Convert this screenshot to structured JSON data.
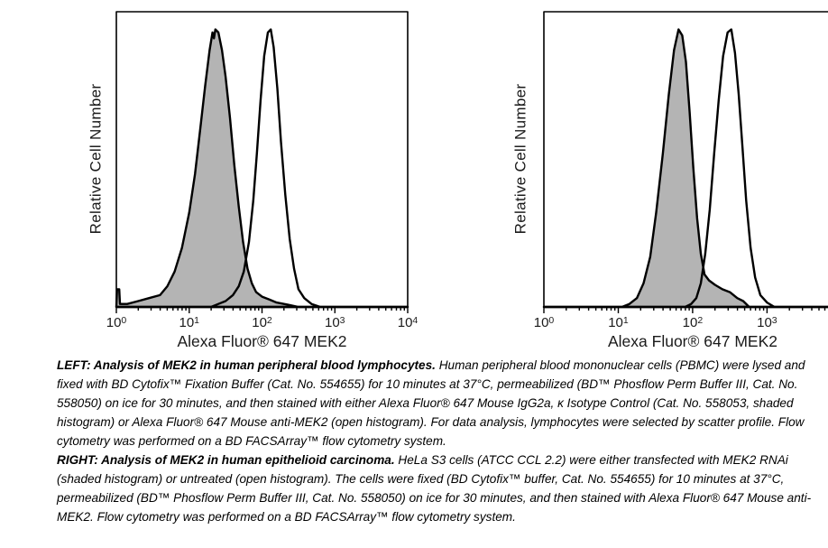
{
  "figure": {
    "background": "#ffffff",
    "text_color": "#1a1a1a",
    "histogram_outline_color": "#000000",
    "shaded_fill_color": "#b4b4b4"
  },
  "chart_data": [
    {
      "type": "area",
      "panel": "left",
      "title": "",
      "xlabel": "Alexa Fluor® 647 MEK2",
      "ylabel": "Relative Cell Number",
      "x_scale": "log10",
      "tick_base": "10",
      "x_range_exponents": [
        0,
        4
      ],
      "x_tick_exponents": [
        0,
        1,
        2,
        3,
        4
      ],
      "y_axis_ticks": "none (relative count)",
      "grid": false,
      "legend": "none (described in caption)",
      "series": [
        {
          "name": "Alexa Fluor® 647 Mouse IgG2a, κ Isotype Control (Cat. No. 558053) — shaded histogram",
          "style": "shaded",
          "fill": "#b4b4b4",
          "approx_peak_x": 22,
          "points": [
            [
              0.0,
              0.0
            ],
            [
              0.01,
              0.06
            ],
            [
              0.04,
              0.06
            ],
            [
              0.05,
              0.01
            ],
            [
              0.15,
              0.01
            ],
            [
              0.3,
              0.02
            ],
            [
              0.45,
              0.03
            ],
            [
              0.6,
              0.04
            ],
            [
              0.7,
              0.07
            ],
            [
              0.8,
              0.12
            ],
            [
              0.9,
              0.2
            ],
            [
              1.0,
              0.32
            ],
            [
              1.08,
              0.45
            ],
            [
              1.15,
              0.6
            ],
            [
              1.22,
              0.75
            ],
            [
              1.28,
              0.87
            ],
            [
              1.32,
              0.93
            ],
            [
              1.34,
              0.91
            ],
            [
              1.36,
              0.94
            ],
            [
              1.4,
              0.93
            ],
            [
              1.45,
              0.87
            ],
            [
              1.5,
              0.78
            ],
            [
              1.56,
              0.64
            ],
            [
              1.62,
              0.48
            ],
            [
              1.68,
              0.34
            ],
            [
              1.74,
              0.22
            ],
            [
              1.8,
              0.13
            ],
            [
              1.86,
              0.08
            ],
            [
              1.92,
              0.05
            ],
            [
              2.0,
              0.035
            ],
            [
              2.1,
              0.025
            ],
            [
              2.2,
              0.015
            ],
            [
              2.35,
              0.008
            ],
            [
              2.5,
              0.0
            ],
            [
              4.0,
              0.0
            ]
          ]
        },
        {
          "name": "Alexa Fluor® 647 Mouse anti-MEK2 — open histogram",
          "style": "open",
          "fill": "none",
          "approx_peak_x": 130,
          "points": [
            [
              0.0,
              0.0
            ],
            [
              1.3,
              0.0
            ],
            [
              1.4,
              0.01
            ],
            [
              1.5,
              0.02
            ],
            [
              1.6,
              0.04
            ],
            [
              1.68,
              0.07
            ],
            [
              1.75,
              0.12
            ],
            [
              1.82,
              0.22
            ],
            [
              1.88,
              0.36
            ],
            [
              1.93,
              0.52
            ],
            [
              1.98,
              0.7
            ],
            [
              2.03,
              0.85
            ],
            [
              2.08,
              0.93
            ],
            [
              2.12,
              0.94
            ],
            [
              2.16,
              0.88
            ],
            [
              2.21,
              0.74
            ],
            [
              2.26,
              0.56
            ],
            [
              2.32,
              0.38
            ],
            [
              2.38,
              0.23
            ],
            [
              2.44,
              0.13
            ],
            [
              2.5,
              0.06
            ],
            [
              2.58,
              0.03
            ],
            [
              2.68,
              0.01
            ],
            [
              2.8,
              0.0
            ],
            [
              4.0,
              0.0
            ]
          ]
        }
      ]
    },
    {
      "type": "area",
      "panel": "right",
      "title": "",
      "xlabel": "Alexa Fluor® 647 MEK2",
      "ylabel": "Relative Cell Number",
      "x_scale": "log10",
      "tick_base": "10",
      "x_range_exponents": [
        0,
        3.82
      ],
      "x_tick_exponents": [
        0,
        1,
        2,
        3
      ],
      "y_axis_ticks": "none (relative count)",
      "grid": false,
      "legend": "none (described in caption)",
      "note": "right edge of plot frame is clipped by image border",
      "series": [
        {
          "name": "HeLa S3 transfected with MEK2 RNAi — shaded histogram",
          "style": "shaded",
          "fill": "#b4b4b4",
          "approx_peak_x": 70,
          "points": [
            [
              0.0,
              0.0
            ],
            [
              1.05,
              0.0
            ],
            [
              1.15,
              0.01
            ],
            [
              1.25,
              0.03
            ],
            [
              1.34,
              0.08
            ],
            [
              1.43,
              0.17
            ],
            [
              1.51,
              0.32
            ],
            [
              1.6,
              0.52
            ],
            [
              1.68,
              0.72
            ],
            [
              1.75,
              0.87
            ],
            [
              1.81,
              0.94
            ],
            [
              1.86,
              0.92
            ],
            [
              1.91,
              0.83
            ],
            [
              1.96,
              0.66
            ],
            [
              2.01,
              0.47
            ],
            [
              2.06,
              0.3
            ],
            [
              2.11,
              0.18
            ],
            [
              2.16,
              0.11
            ],
            [
              2.22,
              0.09
            ],
            [
              2.3,
              0.075
            ],
            [
              2.4,
              0.06
            ],
            [
              2.5,
              0.05
            ],
            [
              2.6,
              0.03
            ],
            [
              2.68,
              0.02
            ],
            [
              2.76,
              0.0
            ],
            [
              3.82,
              0.0
            ]
          ]
        },
        {
          "name": "HeLa S3 untreated, Alexa Fluor® 647 Mouse anti-MEK2 — open histogram",
          "style": "open",
          "fill": "none",
          "approx_peak_x": 350,
          "points": [
            [
              0.0,
              0.0
            ],
            [
              1.9,
              0.0
            ],
            [
              1.98,
              0.01
            ],
            [
              2.05,
              0.03
            ],
            [
              2.11,
              0.08
            ],
            [
              2.17,
              0.18
            ],
            [
              2.23,
              0.33
            ],
            [
              2.29,
              0.52
            ],
            [
              2.35,
              0.7
            ],
            [
              2.41,
              0.85
            ],
            [
              2.47,
              0.93
            ],
            [
              2.52,
              0.94
            ],
            [
              2.57,
              0.86
            ],
            [
              2.62,
              0.72
            ],
            [
              2.67,
              0.54
            ],
            [
              2.72,
              0.36
            ],
            [
              2.78,
              0.2
            ],
            [
              2.84,
              0.1
            ],
            [
              2.91,
              0.04
            ],
            [
              3.0,
              0.015
            ],
            [
              3.1,
              0.0
            ],
            [
              3.82,
              0.0
            ]
          ]
        }
      ]
    }
  ],
  "caption": {
    "paragraphs": [
      {
        "runs": [
          {
            "bold": true,
            "text": "LEFT: Analysis of MEK2 in human peripheral blood lymphocytes."
          },
          {
            "bold": false,
            "text": "  Human peripheral blood mononuclear cells (PBMC) were lysed and fixed with BD Cytofix™ Fixation Buffer (Cat. No. 554655) for 10 minutes at 37°C, permeabilized (BD™ Phosflow Perm Buffer III, Cat. No. 558050) on ice for 30 minutes, and then stained with either Alexa Fluor® 647 Mouse IgG2a, κ Isotype Control (Cat. No. 558053, shaded histogram) or Alexa Fluor® 647 Mouse anti-MEK2 (open histogram).  For data analysis, lymphocytes were selected by scatter profile.  Flow cytometry was performed on a BD FACSArray™ flow cytometry system."
          }
        ]
      },
      {
        "runs": [
          {
            "bold": true,
            "text": "RIGHT: Analysis of MEK2 in human epithelioid carcinoma."
          },
          {
            "bold": false,
            "text": "  HeLa S3 cells (ATCC CCL 2.2) were either transfected with MEK2 RNAi (shaded histogram) or untreated (open histogram).  The cells were fixed (BD Cytofix™ buffer, Cat. No. 554655) for 10 minutes at 37°C, permeabilized (BD™ Phosflow Perm Buffer III, Cat. No. 558050) on ice for 30 minutes, and then stained with Alexa Fluor® 647 Mouse anti-MEK2. Flow cytometry was performed on a BD FACSArray™ flow cytometry system."
          }
        ]
      }
    ]
  }
}
